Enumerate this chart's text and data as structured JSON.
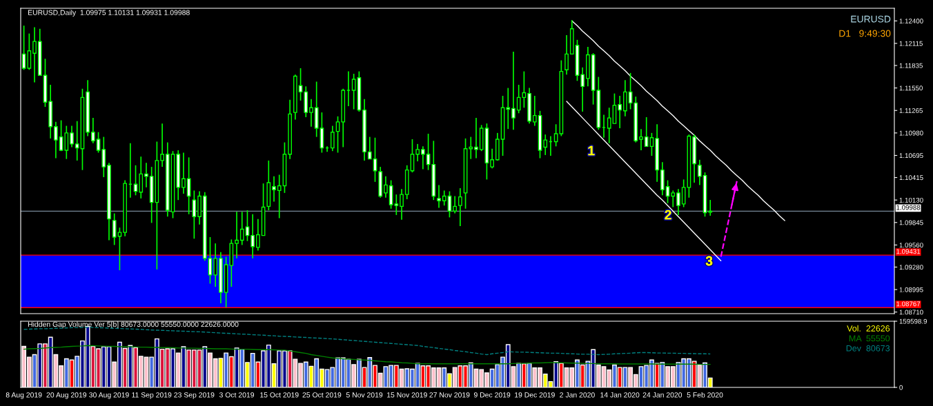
{
  "chart_data": [
    {
      "type": "candlestick",
      "title": "EURUSD,Daily  1.09975 1.10131 1.09931 1.09988",
      "color": "#00ff00",
      "tick_labels": "y",
      "grid": false,
      "categories": [
        null,
        null,
        null,
        null,
        null,
        null,
        null,
        null,
        null,
        null,
        null,
        null,
        null,
        null,
        null,
        null,
        null,
        null,
        null,
        null,
        null,
        null,
        null,
        null,
        null,
        null,
        null,
        null,
        null,
        null,
        null,
        null,
        null,
        null,
        null,
        null,
        null,
        null,
        null,
        null,
        null,
        null,
        null,
        null,
        null,
        null,
        null,
        null,
        null,
        null,
        null,
        null,
        null,
        null,
        null,
        null,
        null,
        null,
        null,
        null,
        null,
        null,
        null,
        null,
        null,
        null,
        null,
        null,
        null,
        null,
        null,
        null,
        null,
        null,
        null,
        null,
        null,
        null,
        null,
        null,
        null,
        null,
        null,
        null,
        null,
        null,
        null,
        null,
        null,
        null,
        null,
        null,
        null,
        null,
        null,
        null,
        null,
        null,
        null,
        null,
        null,
        null,
        null,
        null,
        null,
        null,
        null,
        null,
        null,
        null,
        null,
        null,
        null,
        null,
        null,
        null,
        null,
        null,
        null,
        null,
        null,
        null,
        null,
        null,
        null,
        null,
        null,
        null,
        null,
        null,
        null,
        null,
        null,
        null,
        null,
        null,
        null,
        null,
        null,
        null,
        null,
        null,
        null,
        null,
        null,
        null,
        null,
        null,
        null,
        null,
        null,
        null,
        null,
        null,
        null,
        null,
        null,
        null,
        null,
        null,
        null,
        null,
        null,
        null
      ],
      "ohlc": [
        [
          1.1198,
          1.1234,
          1.1178,
          1.118
        ],
        [
          1.118,
          1.1224,
          1.1178,
          1.1202
        ],
        [
          1.1199,
          1.1232,
          1.1162,
          1.1214
        ],
        [
          1.1214,
          1.123,
          1.1171,
          1.1171
        ],
        [
          1.1171,
          1.1192,
          1.1131,
          1.1137
        ],
        [
          1.1138,
          1.1159,
          1.1091,
          1.1106
        ],
        [
          1.1106,
          1.1112,
          1.1066,
          1.1089
        ],
        [
          1.1093,
          1.1114,
          1.1075,
          1.1076
        ],
        [
          1.1076,
          1.1107,
          1.1065,
          1.1098
        ],
        [
          1.1098,
          1.1107,
          1.108,
          1.1084
        ],
        [
          1.1084,
          1.1113,
          1.1063,
          1.1079
        ],
        [
          1.1078,
          1.1154,
          1.1051,
          1.1143
        ],
        [
          1.115,
          1.1165,
          1.1094,
          1.1099
        ],
        [
          1.1099,
          1.1117,
          1.1085,
          1.1088
        ],
        [
          1.109,
          1.1099,
          1.1073,
          1.1076
        ],
        [
          1.1077,
          1.1093,
          1.1042,
          1.1055
        ],
        [
          1.1057,
          1.106,
          1.0962,
          1.0989
        ],
        [
          1.0987,
          1.0996,
          1.0956,
          1.0966
        ],
        [
          1.0967,
          1.0978,
          1.0924,
          1.0972
        ],
        [
          1.0972,
          1.1038,
          1.0967,
          1.1034
        ],
        [
          1.1033,
          1.1085,
          1.1016,
          1.1033
        ],
        [
          1.1033,
          1.1057,
          1.1019,
          1.1024
        ],
        [
          1.1023,
          1.1068,
          1.1015,
          1.1046
        ],
        [
          1.1046,
          1.106,
          1.1029,
          1.1043
        ],
        [
          1.1043,
          1.1055,
          1.0984,
          1.101
        ],
        [
          1.101,
          1.1087,
          1.0925,
          1.1063
        ],
        [
          1.1063,
          1.111,
          1.1055,
          1.1071
        ],
        [
          1.1071,
          1.1086,
          1.0992,
          1.1
        ],
        [
          1.0998,
          1.1075,
          1.099,
          1.1071
        ],
        [
          1.1071,
          1.1076,
          1.1013,
          1.1029
        ],
        [
          1.1029,
          1.1073,
          1.1021,
          1.104
        ],
        [
          1.104,
          1.1067,
          1.0995,
          1.1018
        ],
        [
          1.1013,
          1.1025,
          1.0964,
          1.0992
        ],
        [
          1.0992,
          1.1024,
          1.0982,
          1.1018
        ],
        [
          1.1018,
          1.1023,
          1.0936,
          1.0939
        ],
        [
          1.0939,
          1.0966,
          1.0907,
          1.0918
        ],
        [
          1.0918,
          1.0958,
          1.0903,
          1.0939
        ],
        [
          1.0939,
          1.0947,
          1.0882,
          1.0896
        ],
        [
          1.0896,
          1.0941,
          1.0877,
          1.0931
        ],
        [
          1.093,
          1.0963,
          1.0903,
          1.0958
        ],
        [
          1.0958,
          1.0998,
          1.0939,
          1.0962
        ],
        [
          1.0962,
          1.0998,
          1.0956,
          1.0976
        ],
        [
          1.0979,
          1.1,
          1.0961,
          1.0968
        ],
        [
          1.0968,
          1.0995,
          1.0939,
          1.0954
        ],
        [
          1.0953,
          1.0989,
          1.0949,
          1.0969
        ],
        [
          1.0968,
          1.1034,
          1.0968,
          1.1004
        ],
        [
          1.1005,
          1.1063,
          1.1,
          1.1035
        ],
        [
          1.103,
          1.1043,
          1.1011,
          1.1026
        ],
        [
          1.1025,
          1.1045,
          1.099,
          1.1031
        ],
        [
          1.1031,
          1.1086,
          1.1022,
          1.1071
        ],
        [
          1.1071,
          1.114,
          1.1065,
          1.1122
        ],
        [
          1.1124,
          1.1172,
          1.1115,
          1.117
        ],
        [
          1.1158,
          1.118,
          1.1139,
          1.115
        ],
        [
          1.115,
          1.1157,
          1.1118,
          1.1124
        ],
        [
          1.1124,
          1.1141,
          1.1106,
          1.113
        ],
        [
          1.113,
          1.1163,
          1.1093,
          1.1104
        ],
        [
          1.1104,
          1.1124,
          1.1073,
          1.1079
        ],
        [
          1.1079,
          1.1081,
          1.1074,
          1.1079
        ],
        [
          1.1079,
          1.1107,
          1.1075,
          1.1099
        ],
        [
          1.11,
          1.1119,
          1.1073,
          1.1112
        ],
        [
          1.1112,
          1.1154,
          1.108,
          1.1152
        ],
        [
          1.1152,
          1.1176,
          1.1132,
          1.1152
        ],
        [
          1.1152,
          1.1173,
          1.1128,
          1.1166
        ],
        [
          1.1168,
          1.1176,
          1.1125,
          1.1127
        ],
        [
          1.1127,
          1.1141,
          1.1063,
          1.1074
        ],
        [
          1.1074,
          1.1093,
          1.1065,
          1.1065
        ],
        [
          1.1065,
          1.1092,
          1.1036,
          1.105
        ],
        [
          1.1049,
          1.1055,
          1.1016,
          1.1018
        ],
        [
          1.1022,
          1.1043,
          1.1016,
          1.1032
        ],
        [
          1.1031,
          1.1038,
          1.1002,
          1.1007
        ],
        [
          1.1008,
          1.102,
          1.0994,
          1.1006
        ],
        [
          1.1005,
          1.1027,
          1.0988,
          1.102
        ],
        [
          1.102,
          1.1057,
          1.1014,
          1.1051
        ],
        [
          1.105,
          1.109,
          1.1048,
          1.1071
        ],
        [
          1.1071,
          1.1084,
          1.1062,
          1.1077
        ],
        [
          1.1077,
          1.1081,
          1.1052,
          1.1071
        ],
        [
          1.1071,
          1.1097,
          1.1051,
          1.1058
        ],
        [
          1.1058,
          1.1088,
          1.1013,
          1.1018
        ],
        [
          1.1015,
          1.1032,
          1.1003,
          1.1012
        ],
        [
          1.1012,
          1.1025,
          1.1006,
          1.1018
        ],
        [
          1.1018,
          1.1024,
          1.0991,
          1.0999
        ],
        [
          1.0999,
          1.1018,
          1.0996,
          1.1005
        ],
        [
          1.1006,
          1.1028,
          1.098,
          1.1017
        ],
        [
          1.1022,
          1.1091,
          1.1002,
          1.1078
        ],
        [
          1.1078,
          1.1093,
          1.1065,
          1.108
        ],
        [
          1.108,
          1.1117,
          1.1066,
          1.1077
        ],
        [
          1.1077,
          1.1108,
          1.1075,
          1.1104
        ],
        [
          1.1104,
          1.111,
          1.1039,
          1.106
        ],
        [
          1.1055,
          1.1078,
          1.1053,
          1.1064
        ],
        [
          1.1064,
          1.1098,
          1.1063,
          1.109
        ],
        [
          1.109,
          1.1145,
          1.1069,
          1.113
        ],
        [
          1.113,
          1.1155,
          1.1103,
          1.1128
        ],
        [
          1.1129,
          1.1201,
          1.1102,
          1.1117
        ],
        [
          1.1127,
          1.1159,
          1.1123,
          1.1143
        ],
        [
          1.1143,
          1.1176,
          1.113,
          1.1149
        ],
        [
          1.1148,
          1.1155,
          1.111,
          1.1113
        ],
        [
          1.1112,
          1.1145,
          1.1107,
          1.112
        ],
        [
          1.112,
          1.1126,
          1.1066,
          1.1076
        ],
        [
          1.108,
          1.1096,
          1.107,
          1.1089
        ],
        [
          1.1087,
          1.1094,
          1.1069,
          1.1087
        ],
        [
          1.1087,
          1.1109,
          1.1081,
          1.1097
        ],
        [
          1.1097,
          1.119,
          1.1094,
          1.1176
        ],
        [
          1.1178,
          1.1222,
          1.1172,
          1.1198
        ],
        [
          1.1198,
          1.1241,
          1.1198,
          1.123
        ],
        [
          1.1209,
          1.1216,
          1.1164,
          1.1171
        ],
        [
          1.1172,
          1.1181,
          1.1125,
          1.1157
        ],
        [
          1.1167,
          1.1207,
          1.1157,
          1.1197
        ],
        [
          1.1197,
          1.1199,
          1.1134,
          1.1152
        ],
        [
          1.1152,
          1.1169,
          1.1102,
          1.1105
        ],
        [
          1.1105,
          1.1121,
          1.1092,
          1.1105
        ],
        [
          1.1104,
          1.113,
          1.1085,
          1.1117
        ],
        [
          1.111,
          1.1148,
          1.111,
          1.1133
        ],
        [
          1.1134,
          1.1145,
          1.1104,
          1.1127
        ],
        [
          1.1126,
          1.1165,
          1.1119,
          1.115
        ],
        [
          1.115,
          1.1174,
          1.1128,
          1.1136
        ],
        [
          1.1136,
          1.1144,
          1.1086,
          1.1088
        ],
        [
          1.109,
          1.1103,
          1.1076,
          1.1093
        ],
        [
          1.1093,
          1.1118,
          1.1081,
          1.1081
        ],
        [
          1.1081,
          1.1098,
          1.1069,
          1.1092
        ],
        [
          1.1091,
          1.1109,
          1.1036,
          1.1051
        ],
        [
          1.1051,
          1.1061,
          1.1019,
          1.1026
        ],
        [
          1.103,
          1.1038,
          1.1009,
          1.1018
        ],
        [
          1.1018,
          1.1025,
          1.1004,
          1.1022
        ],
        [
          1.1022,
          1.1027,
          1.0994,
          1.1006
        ],
        [
          1.1008,
          1.1039,
          1.1004,
          1.1029
        ],
        [
          1.1029,
          1.1096,
          1.1016,
          1.1094
        ],
        [
          1.1093,
          1.1096,
          1.1035,
          1.1059
        ],
        [
          1.1057,
          1.1064,
          1.1032,
          1.1043
        ],
        [
          1.1044,
          1.1048,
          1.0992,
          1.0997
        ],
        [
          1.09975,
          1.10131,
          1.09931,
          1.09988
        ],
        null,
        null,
        null,
        null,
        null,
        null,
        null,
        null,
        null,
        null,
        null,
        null,
        null,
        null,
        null,
        null,
        null,
        null,
        null,
        null,
        null,
        null,
        null,
        null,
        null,
        null,
        null,
        null,
        null,
        null,
        null,
        null,
        null,
        null
      ],
      "series": [
        {
          "type": "line",
          "color": "#ffffff",
          "line_style": "solid",
          "values": [
            null,
            null,
            null,
            null,
            null,
            null,
            null,
            null,
            null,
            null,
            null,
            null,
            null,
            null,
            null,
            null,
            null,
            null,
            null,
            null,
            null,
            null,
            null,
            null,
            null,
            null,
            null,
            null,
            null,
            null,
            null,
            null,
            null,
            null,
            null,
            null,
            null,
            null,
            null,
            null,
            null,
            null,
            null,
            null,
            null,
            null,
            null,
            null,
            null,
            null,
            null,
            null,
            null,
            null,
            null,
            null,
            null,
            null,
            null,
            null,
            null,
            null,
            null,
            null,
            null,
            null,
            null,
            null,
            null,
            null,
            null,
            null,
            null,
            null,
            null,
            null,
            null,
            null,
            null,
            null,
            null,
            null,
            null,
            null,
            null,
            null,
            null,
            null,
            null,
            null,
            null,
            null,
            null,
            null,
            null,
            null,
            null,
            null,
            null,
            null,
            null,
            null,
            null,
            1.124,
            1.1234,
            1.1227,
            1.1221,
            1.1215,
            1.1208,
            1.1202,
            1.1196,
            1.1189,
            1.1183,
            1.1177,
            1.117,
            1.1164,
            1.1158,
            1.1151,
            1.1145,
            1.1139,
            1.1132,
            1.1126,
            1.112,
            1.1113,
            1.1107,
            1.1101,
            1.1095,
            1.1088,
            1.1082,
            1.1076,
            1.1069,
            1.1063,
            1.1057,
            1.105,
            1.1044,
            1.1038,
            1.1031,
            1.1025,
            1.1019,
            1.1012,
            1.1006,
            1.1,
            1.0993,
            1.0987,
            null,
            null,
            null,
            null,
            null,
            null,
            null,
            null,
            null,
            null,
            null,
            null,
            null,
            null,
            null,
            null,
            null,
            null,
            null,
            null
          ]
        },
        {
          "type": "line",
          "color": "#ffffff",
          "line_style": "solid",
          "values": [
            null,
            null,
            null,
            null,
            null,
            null,
            null,
            null,
            null,
            null,
            null,
            null,
            null,
            null,
            null,
            null,
            null,
            null,
            null,
            null,
            null,
            null,
            null,
            null,
            null,
            null,
            null,
            null,
            null,
            null,
            null,
            null,
            null,
            null,
            null,
            null,
            null,
            null,
            null,
            null,
            null,
            null,
            null,
            null,
            null,
            null,
            null,
            null,
            null,
            null,
            null,
            null,
            null,
            null,
            null,
            null,
            null,
            null,
            null,
            null,
            null,
            null,
            null,
            null,
            null,
            null,
            null,
            null,
            null,
            null,
            null,
            null,
            null,
            null,
            null,
            null,
            null,
            null,
            null,
            null,
            null,
            null,
            null,
            null,
            null,
            null,
            null,
            null,
            null,
            null,
            null,
            null,
            null,
            null,
            null,
            null,
            null,
            null,
            null,
            null,
            null,
            null,
            1.1138,
            1.1131,
            1.1124,
            1.1117,
            1.111,
            1.1103,
            1.1096,
            1.1089,
            1.1082,
            1.1075,
            1.1068,
            1.1061,
            1.1054,
            1.1047,
            1.104,
            1.1033,
            1.1026,
            1.1019,
            1.1013,
            1.1006,
            1.0999,
            1.0992,
            1.0985,
            1.0978,
            1.0971,
            1.0964,
            1.0957,
            1.095,
            1.0943,
            1.0936,
            null,
            null,
            null,
            null,
            null,
            null,
            null,
            null,
            null,
            null,
            null,
            null,
            null,
            null,
            null,
            null,
            null,
            null,
            null,
            null,
            null,
            null,
            null,
            null,
            null,
            null,
            null,
            null,
            null,
            null,
            null,
            null
          ]
        },
        {
          "type": "line",
          "color": "#ff00ff",
          "line_style": "dashed",
          "values": [
            null,
            null,
            null,
            null,
            null,
            null,
            null,
            null,
            null,
            null,
            null,
            null,
            null,
            null,
            null,
            null,
            null,
            null,
            null,
            null,
            null,
            null,
            null,
            null,
            null,
            null,
            null,
            null,
            null,
            null,
            null,
            null,
            null,
            null,
            null,
            null,
            null,
            null,
            null,
            null,
            null,
            null,
            null,
            null,
            null,
            null,
            null,
            null,
            null,
            null,
            null,
            null,
            null,
            null,
            null,
            null,
            null,
            null,
            null,
            null,
            null,
            null,
            null,
            null,
            null,
            null,
            null,
            null,
            null,
            null,
            null,
            null,
            null,
            null,
            null,
            null,
            null,
            null,
            null,
            null,
            null,
            null,
            null,
            null,
            null,
            null,
            null,
            null,
            null,
            null,
            null,
            null,
            null,
            null,
            null,
            null,
            null,
            null,
            null,
            null,
            null,
            null,
            null,
            null,
            null,
            null,
            null,
            null,
            null,
            null,
            null,
            null,
            null,
            null,
            null,
            null,
            null,
            null,
            null,
            null,
            null,
            null,
            null,
            null,
            null,
            null,
            null,
            null,
            null,
            null,
            null,
            1.0941,
            1.0973,
            1.1005,
            1.1037,
            null,
            null,
            null,
            null,
            null,
            null,
            null,
            null,
            null,
            null,
            null,
            null,
            null,
            null,
            null,
            null,
            null,
            null,
            null,
            null,
            null,
            null,
            null,
            null,
            null,
            null,
            null,
            null,
            null
          ]
        }
      ],
      "ylim": [
        1.0869,
        1.1256
      ],
      "yticks": [
        {
          "value": 1.124,
          "label": "1.12400"
        },
        {
          "value": 1.12115,
          "label": "1.12115"
        },
        {
          "value": 1.11835,
          "label": "1.11835"
        },
        {
          "value": 1.1155,
          "label": "1.11550"
        },
        {
          "value": 1.11265,
          "label": "1.11265"
        },
        {
          "value": 1.1098,
          "label": "1.10980"
        },
        {
          "value": 1.10695,
          "label": "1.10695"
        },
        {
          "value": 1.10415,
          "label": "1.10415"
        },
        {
          "value": 1.1013,
          "label": "1.10130"
        },
        {
          "value": 1.09845,
          "label": "1.09845"
        },
        {
          "value": 1.0956,
          "label": "1.09560"
        },
        {
          "value": 1.0928,
          "label": "1.09280"
        },
        {
          "value": 1.08995,
          "label": "1.08995"
        },
        {
          "value": 1.0871,
          "label": "1.08710"
        }
      ],
      "bands": [
        {
          "axis": "y",
          "from": 1.08767,
          "to": 1.09431,
          "color": "#0000ff"
        }
      ],
      "ref_lines": [
        {
          "axis": "y",
          "value": 1.09431,
          "label": "1.09431",
          "color": "#ff0000"
        },
        {
          "axis": "y",
          "value": 1.08767,
          "label": "1.08767",
          "color": "#ff0000"
        },
        {
          "axis": "y",
          "value": 1.09988,
          "label": "1.09988",
          "color": "#778899"
        }
      ],
      "annotations": [
        "EURUSD",
        "D1   9:49:30",
        "1",
        "2",
        "3"
      ]
    },
    {
      "type": "bar",
      "title": "Hidden Gap Volume Ver 5[b] 80673.0000 55550.0000 22626.0000",
      "legend": "top right",
      "grid": false,
      "categories": [
        "8 Aug 2019",
        null,
        null,
        null,
        null,
        null,
        null,
        null,
        "20 Aug 2019",
        null,
        null,
        null,
        null,
        null,
        null,
        null,
        "30 Aug 2019",
        null,
        null,
        null,
        null,
        null,
        null,
        null,
        "11 Sep 2019",
        null,
        null,
        null,
        null,
        null,
        null,
        null,
        "23 Sep 2019",
        null,
        null,
        null,
        null,
        null,
        null,
        null,
        "3 Oct 2019",
        null,
        null,
        null,
        null,
        null,
        null,
        null,
        "15 Oct 2019",
        null,
        null,
        null,
        null,
        null,
        null,
        null,
        "25 Oct 2019",
        null,
        null,
        null,
        null,
        null,
        null,
        null,
        "5 Nov 2019",
        null,
        null,
        null,
        null,
        null,
        null,
        null,
        "15 Nov 2019",
        null,
        null,
        null,
        null,
        null,
        null,
        null,
        "27 Nov 2019",
        null,
        null,
        null,
        null,
        null,
        null,
        null,
        "9 Dec 2019",
        null,
        null,
        null,
        null,
        null,
        null,
        null,
        "19 Dec 2019",
        null,
        null,
        null,
        null,
        null,
        null,
        null,
        "2 Jan 2020",
        null,
        null,
        null,
        null,
        null,
        null,
        null,
        "14 Jan 2020",
        null,
        null,
        null,
        null,
        null,
        null,
        null,
        "24 Jan 2020",
        null,
        null,
        null,
        null,
        null,
        null,
        null,
        "5 Feb 2020",
        null
      ],
      "series": [
        {
          "type": "bar",
          "values": [
            99000,
            73000,
            79000,
            105000,
            105000,
            121000,
            79000,
            52000,
            69000,
            66000,
            75000,
            112000,
            147000,
            99000,
            93000,
            98000,
            98000,
            61000,
            109000,
            94000,
            101000,
            96000,
            75000,
            73000,
            73000,
            117000,
            92000,
            93000,
            93000,
            83000,
            98000,
            90000,
            90000,
            90000,
            98000,
            83000,
            69000,
            70000,
            83000,
            74000,
            95000,
            92000,
            60000,
            82000,
            61000,
            88000,
            102000,
            57000,
            88000,
            88000,
            88000,
            68000,
            58000,
            61000,
            51000,
            69000,
            44000,
            43000,
            48000,
            71000,
            71000,
            68000,
            55000,
            68000,
            48000,
            72000,
            53000,
            34000,
            50000,
            53000,
            53000,
            44000,
            45000,
            44000,
            58000,
            52000,
            52000,
            47000,
            47000,
            47000,
            33000,
            48000,
            52000,
            52000,
            59000,
            44000,
            43000,
            35000,
            44000,
            55000,
            73000,
            103000,
            50000,
            58000,
            57000,
            58000,
            47000,
            47000,
            32000,
            14000,
            62000,
            58000,
            47000,
            47000,
            66000,
            54000,
            63000,
            91000,
            54000,
            50000,
            42000,
            54000,
            48000,
            48000,
            48000,
            31000,
            50000,
            53000,
            66000,
            58000,
            60000,
            50000,
            50000,
            60000,
            69000,
            69000,
            63000,
            54000,
            59000,
            22626
          ],
          "colors": [
            "#ffc0cb",
            "#ffc0cb",
            "#4169e1",
            "#00008b",
            "#dc143c",
            "#00008b",
            "#ffc0cb",
            "#ffc0cb",
            "#4169e1",
            "#ff0000",
            "#4169e1",
            "#00008b",
            "#00008b",
            "#dc143c",
            "#dc143c",
            "#00008b",
            "#00008b",
            "#ffc0cb",
            "#00008b",
            "#dc143c",
            "#00008b",
            "#dc143c",
            "#ffc0cb",
            "#ffc0cb",
            "#4169e1",
            "#00008b",
            "#dc143c",
            "#dc143c",
            "#00008b",
            "#ffc0cb",
            "#00008b",
            "#dc143c",
            "#dc143c",
            "#dc143c",
            "#00008b",
            "#ffc0cb",
            "#ffc0cb",
            "#ffff00",
            "#4169e1",
            "#ff0000",
            "#00008b",
            "#4169e1",
            "#ffff00",
            "#4169e1",
            "#ff0000",
            "#00008b",
            "#00008b",
            "#ffff00",
            "#00008b",
            "#00008b",
            "#dc143c",
            "#ffc0cb",
            "#ffc0cb",
            "#4169e1",
            "#ffff00",
            "#4169e1",
            "#ffff00",
            "#4169e1",
            "#4169e1",
            "#4169e1",
            "#4169e1",
            "#4169e1",
            "#ffc0cb",
            "#4169e1",
            "#ff0000",
            "#4169e1",
            "#ff0000",
            "#ffc0cb",
            "#4169e1",
            "#4169e1",
            "#ff0000",
            "#ffc0cb",
            "#4169e1",
            "#4169e1",
            "#4169e1",
            "#ff0000",
            "#ff0000",
            "#ffc0cb",
            "#ffc0cb",
            "#4169e1",
            "#ffff00",
            "#ffc0cb",
            "#ff0000",
            "#ff0000",
            "#4169e1",
            "#ffc0cb",
            "#ffc0cb",
            "#ffc0cb",
            "#4169e1",
            "#4169e1",
            "#4169e1",
            "#00008b",
            "#ffc0cb",
            "#4169e1",
            "#ff0000",
            "#4169e1",
            "#ffc0cb",
            "#ffc0cb",
            "#ffff00",
            "#ffff00",
            "#00008b",
            "#ff0000",
            "#ffc0cb",
            "#ffc0cb",
            "#4169e1",
            "#ff0000",
            "#4169e1",
            "#00008b",
            "#ffc0cb",
            "#ffc0cb",
            "#ffc0cb",
            "#4169e1",
            "#ff0000",
            "#4169e1",
            "#ffc0cb",
            "#ffc0cb",
            "#4169e1",
            "#4169e1",
            "#4169e1",
            "#ff0000",
            "#4169e1",
            "#ffc0cb",
            "#ffc0cb",
            "#4169e1",
            "#4169e1",
            "#4169e1",
            "#ff0000",
            "#ffc0cb",
            "#4169e1",
            "#ffff00"
          ]
        },
        {
          "name": "MA  55550",
          "type": "line",
          "color": "#008000",
          "line_style": "solid",
          "values": [
            92000,
            93000,
            93500,
            94000,
            95000,
            96000,
            96500,
            97000,
            98000,
            99000,
            99500,
            100000,
            101000,
            100500,
            100000,
            99500,
            99000,
            99000,
            98000,
            98000,
            98000,
            97500,
            97000,
            97000,
            96500,
            96500,
            96000,
            96000,
            95500,
            95000,
            95000,
            94500,
            94500,
            94000,
            94000,
            93500,
            93000,
            93000,
            93000,
            92500,
            92000,
            92000,
            92000,
            91500,
            91000,
            91000,
            91000,
            90500,
            90000,
            90000,
            88000,
            86000,
            84000,
            82000,
            79000,
            77000,
            75000,
            73000,
            71000,
            70000,
            69000,
            68000,
            67500,
            66500,
            66000,
            65000,
            64000,
            63000,
            62000,
            61500,
            60500,
            59500,
            59000,
            58000,
            57000,
            57000,
            57000,
            57000,
            57000,
            57000,
            57000,
            57000,
            57000,
            57000,
            57000,
            57000,
            57000,
            57000,
            57000,
            57000,
            57000,
            57000,
            57500,
            58000,
            58000,
            58500,
            59000,
            59000,
            59500,
            60000,
            59500,
            59500,
            59000,
            58500,
            58500,
            58000,
            57500,
            57500,
            57000,
            57000,
            57000,
            57000,
            56500,
            56500,
            56500,
            56500,
            56500,
            56500,
            56500,
            56000,
            56000,
            56000,
            56000,
            56000,
            56000,
            56000,
            56000,
            55500,
            55500,
            55550
          ]
        },
        {
          "name": "Dev  80673",
          "type": "line",
          "color": "#008080",
          "line_style": "dashed",
          "values": [
            140000,
            140500,
            141000,
            141500,
            141500,
            142000,
            142500,
            143000,
            143500,
            144000,
            144000,
            144500,
            145000,
            144500,
            144000,
            143500,
            143000,
            142500,
            142000,
            141500,
            141000,
            140500,
            140000,
            139000,
            138500,
            138000,
            137500,
            137000,
            136500,
            136000,
            135500,
            135000,
            134500,
            134000,
            133500,
            132500,
            132000,
            131000,
            130500,
            130000,
            129000,
            128500,
            128000,
            127000,
            126500,
            126000,
            125000,
            124500,
            123500,
            123000,
            122500,
            121500,
            121000,
            120500,
            119500,
            119000,
            118500,
            117500,
            117000,
            116000,
            115000,
            114000,
            113000,
            112000,
            111000,
            110000,
            109000,
            108000,
            107000,
            106000,
            105000,
            104000,
            103000,
            102000,
            101000,
            99000,
            97500,
            96000,
            94000,
            92500,
            91000,
            89000,
            87500,
            86000,
            84000,
            82500,
            80500,
            79000,
            81000,
            82500,
            84000,
            86000,
            85500,
            85000,
            85000,
            84500,
            84000,
            83500,
            83000,
            82500,
            82500,
            82000,
            81500,
            81000,
            80500,
            80000,
            80000,
            79500,
            79000,
            79500,
            80000,
            81000,
            81500,
            82000,
            82500,
            83500,
            84000,
            84000,
            83500,
            83000,
            83000,
            82500,
            82500,
            82000,
            82000,
            81500,
            81500,
            81000,
            81000,
            80673
          ]
        }
      ],
      "ylim": [
        0,
        159598.9
      ],
      "yticks": [
        {
          "value": 159598.9,
          "label": "159598.9"
        },
        0
      ],
      "annotations": [
        "Vol.  22626"
      ]
    }
  ]
}
